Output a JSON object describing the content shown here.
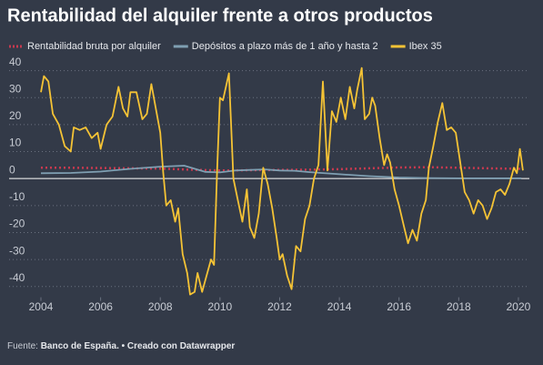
{
  "chart_data": {
    "type": "line",
    "title": "Rentabilidad del alquiler frente a otros productos",
    "xlim": [
      2003.9,
      2020.3
    ],
    "ylim": [
      -44,
      42
    ],
    "xticks": [
      2004,
      2006,
      2008,
      2010,
      2012,
      2014,
      2016,
      2018,
      2020
    ],
    "yticks": [
      -40,
      -30,
      -20,
      -10,
      0,
      10,
      20,
      30,
      40
    ],
    "grid": true,
    "series": [
      {
        "name": "Rentabilidad bruta por alquiler",
        "color": "#c8394f",
        "style": "dotted",
        "x": [
          2004,
          2005,
          2006,
          2007,
          2008,
          2009,
          2010,
          2011,
          2012,
          2013,
          2014,
          2015,
          2016,
          2017,
          2018,
          2019,
          2020.1
        ],
        "values": [
          4.0,
          4.0,
          3.9,
          3.8,
          3.7,
          3.3,
          3.0,
          3.1,
          3.2,
          3.3,
          3.5,
          3.8,
          4.1,
          4.2,
          4.0,
          3.8,
          3.6
        ]
      },
      {
        "name": "Depósitos a plazo más de 1 año y hasta 2",
        "color": "#7f9fb2",
        "style": "solid",
        "x": [
          2004,
          2005,
          2006,
          2007,
          2008,
          2008.8,
          2009.5,
          2010,
          2010.5,
          2011,
          2011.5,
          2012,
          2012.5,
          2013,
          2014,
          2015,
          2016,
          2017,
          2018,
          2019,
          2020.1
        ],
        "values": [
          2.0,
          2.1,
          2.6,
          3.6,
          4.4,
          4.8,
          2.5,
          2.3,
          3.0,
          3.2,
          3.4,
          3.0,
          2.9,
          2.4,
          1.6,
          0.9,
          0.4,
          0.2,
          0.1,
          0.1,
          0.1
        ]
      },
      {
        "name": "Ibex 35",
        "color": "#f5c335",
        "style": "solid",
        "x": [
          2004.0,
          2004.1,
          2004.25,
          2004.4,
          2004.6,
          2004.8,
          2005.0,
          2005.1,
          2005.3,
          2005.5,
          2005.7,
          2005.9,
          2006.0,
          2006.2,
          2006.4,
          2006.6,
          2006.75,
          2006.9,
          2007.0,
          2007.2,
          2007.4,
          2007.55,
          2007.7,
          2007.85,
          2008.0,
          2008.1,
          2008.2,
          2008.35,
          2008.5,
          2008.6,
          2008.75,
          2008.9,
          2009.0,
          2009.15,
          2009.25,
          2009.4,
          2009.55,
          2009.7,
          2009.8,
          2009.9,
          2010.0,
          2010.1,
          2010.2,
          2010.3,
          2010.45,
          2010.6,
          2010.75,
          2010.9,
          2011.0,
          2011.15,
          2011.3,
          2011.45,
          2011.6,
          2011.75,
          2011.9,
          2012.0,
          2012.1,
          2012.25,
          2012.4,
          2012.55,
          2012.7,
          2012.85,
          2013.0,
          2013.15,
          2013.3,
          2013.45,
          2013.6,
          2013.75,
          2013.9,
          2014.05,
          2014.2,
          2014.35,
          2014.5,
          2014.6,
          2014.75,
          2014.85,
          2015.0,
          2015.1,
          2015.2,
          2015.35,
          2015.5,
          2015.6,
          2015.7,
          2015.85,
          2016.0,
          2016.15,
          2016.3,
          2016.45,
          2016.6,
          2016.75,
          2016.9,
          2017.0,
          2017.15,
          2017.3,
          2017.45,
          2017.6,
          2017.75,
          2017.9,
          2018.05,
          2018.2,
          2018.35,
          2018.5,
          2018.65,
          2018.8,
          2018.95,
          2019.1,
          2019.25,
          2019.4,
          2019.55,
          2019.7,
          2019.85,
          2019.95,
          2020.05,
          2020.15
        ],
        "values": [
          32,
          38,
          36,
          24,
          20,
          12,
          10,
          19,
          18,
          19,
          15,
          17,
          11,
          20,
          23,
          34,
          26,
          23,
          32,
          32,
          22,
          24,
          35,
          26,
          17,
          2,
          -10,
          -8,
          -16,
          -11,
          -28,
          -35,
          -43,
          -42,
          -35,
          -42,
          -36,
          -30,
          -32,
          2,
          30,
          29,
          34,
          39,
          0,
          -8,
          -16,
          -4,
          -18,
          -22,
          -13,
          4,
          -2,
          -11,
          -22,
          -30,
          -28,
          -36,
          -41,
          -25,
          -27,
          -15,
          -10,
          0,
          5,
          36,
          3,
          25,
          21,
          30,
          22,
          34,
          26,
          33,
          41,
          22,
          24,
          30,
          27,
          15,
          5,
          9,
          6,
          -4,
          -10,
          -17,
          -24,
          -19,
          -23,
          -13,
          -8,
          4,
          12,
          21,
          28,
          18,
          19,
          17,
          6,
          -5,
          -8,
          -13,
          -8,
          -10,
          -15,
          -11,
          -5,
          -4,
          -6,
          -2,
          4,
          2,
          11,
          3
        ]
      }
    ]
  },
  "footer": {
    "source_label": "Fuente:",
    "source": "Banco de España.",
    "credit": "• Creado con Datawrapper"
  }
}
